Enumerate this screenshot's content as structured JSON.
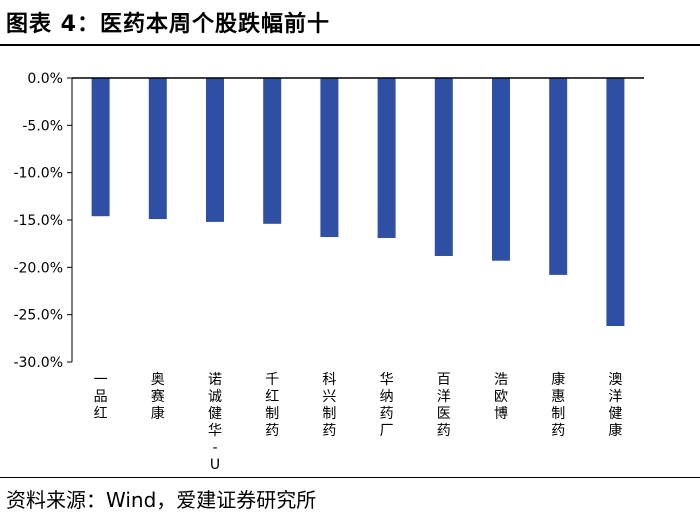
{
  "header": {
    "title": "图表 4：医药本周个股跌幅前十"
  },
  "footer": {
    "source": "资料来源：Wind，爱建证券研究所"
  },
  "colors": {
    "bar": "#2E4FA3",
    "axis": "#000000"
  },
  "chart_data": {
    "type": "bar",
    "title": "医药本周个股跌幅前十",
    "xlabel": "",
    "ylabel": "",
    "ylim": [
      -30,
      0
    ],
    "yticks": [
      0,
      -5,
      -10,
      -15,
      -20,
      -25,
      -30
    ],
    "ytick_labels": [
      "0.0%",
      "-5.0%",
      "-10.0%",
      "-15.0%",
      "-20.0%",
      "-25.0%",
      "-30.0%"
    ],
    "categories": [
      "一品红",
      "奥赛康",
      "诺诚健华-U",
      "千红制药",
      "科兴制药",
      "华纳药厂",
      "百洋医药",
      "浩欧博",
      "康惠制药",
      "澳洋健康"
    ],
    "category_labels": [
      "一品红",
      "奥赛康",
      "诺诚健华-U",
      "千红制药",
      "科兴制药",
      "华纳药厂",
      "百洋医药",
      "浩欧博",
      "康惠制药",
      "澳洋健康"
    ],
    "values": [
      -14.6,
      -14.9,
      -15.2,
      -15.4,
      -16.8,
      -16.9,
      -18.8,
      -19.3,
      -20.8,
      -26.2
    ],
    "grid": false,
    "legend": "none"
  }
}
